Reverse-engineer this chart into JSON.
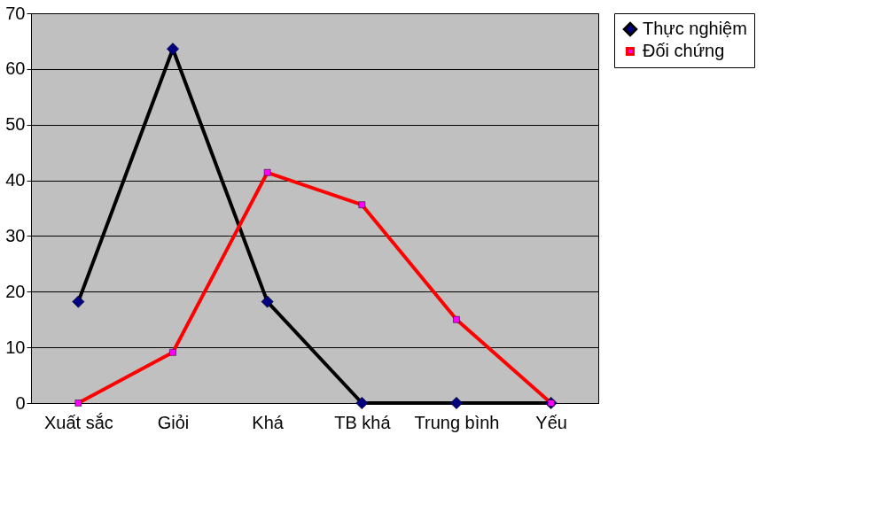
{
  "chart_data": {
    "type": "line",
    "categories": [
      "Xuất sắc",
      "Giỏi",
      "Khá",
      "TB khá",
      "Trung bình",
      "Yếu"
    ],
    "series": [
      {
        "name": "Thực nghiệm",
        "color": "#000000",
        "marker": "diamond",
        "values": [
          18.2,
          63.6,
          18.2,
          0,
          0,
          0
        ]
      },
      {
        "name": "Đối chứng",
        "color": "#ff0000",
        "marker": "square",
        "values": [
          0,
          9.1,
          41.4,
          35.6,
          15,
          0
        ]
      }
    ],
    "ylim": [
      0,
      70
    ],
    "yticks": [
      0,
      10,
      20,
      30,
      40,
      50,
      60,
      70
    ],
    "grid": "y",
    "legend": "right",
    "line_style": "solid"
  }
}
